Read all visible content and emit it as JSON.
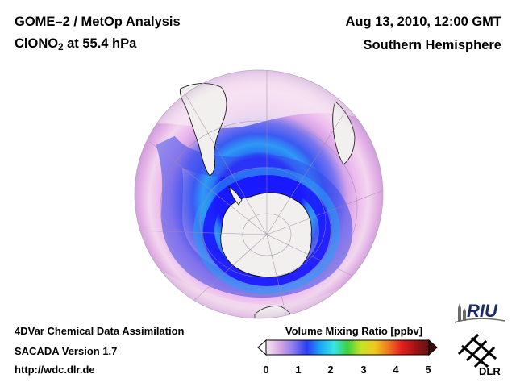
{
  "header": {
    "title_line1": "GOME–2 / MetOp Analysis",
    "title_line2_species_base": "ClONO",
    "title_line2_species_sub": "2",
    "title_line2_rest": " at 55.4 hPa",
    "date": "Aug 13, 2010, 12:00 GMT",
    "region": "Southern Hemisphere"
  },
  "footer": {
    "line1": "4DVar Chemical Data Assimilation",
    "line2": "SACADA Version 1.7",
    "line3": "http://wdc.dlr.de"
  },
  "colorbar": {
    "title": "Volume Mixing Ratio [ppbv]",
    "ticks": [
      "0",
      "1",
      "2",
      "3",
      "4",
      "5"
    ],
    "range": [
      0,
      5
    ],
    "colors": [
      "#f4eaf2",
      "#d8a8e4",
      "#8a7cf0",
      "#2a3cf4",
      "#1aa6f4",
      "#36e6e6",
      "#3ed23e",
      "#c6e228",
      "#f0c81e",
      "#ee7a1e",
      "#e61e1e",
      "#a01414",
      "#5a1414"
    ]
  },
  "map": {
    "projection": "orthographic south polar",
    "ocean_color": "#f6eef2",
    "land_color": "#f2f0ee",
    "enhanced_color": "#e8aae8",
    "depleted_color": "#2250f0",
    "vortex_edge_color": "#1a1aff"
  },
  "logos": {
    "riu_text": "RIU",
    "dlr_text": "DLR"
  }
}
